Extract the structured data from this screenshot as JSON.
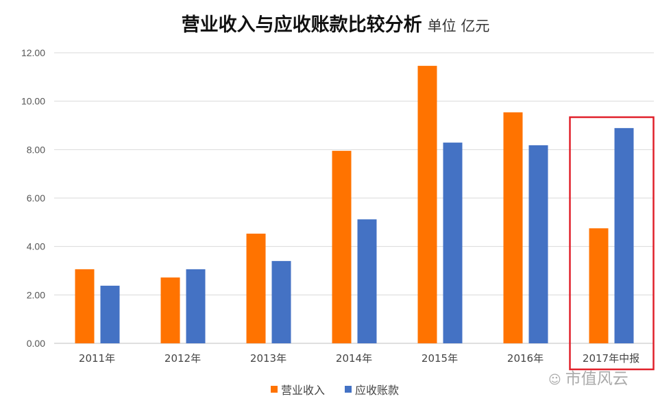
{
  "chart_data": {
    "type": "bar",
    "title": "营业收入与应收账款比较分析",
    "subtitle": "单位 亿元",
    "categories": [
      "2011年",
      "2012年",
      "2013年",
      "2014年",
      "2015年",
      "2016年",
      "2017年中报"
    ],
    "series": [
      {
        "name": "营业收入",
        "color": "#FF7300",
        "values": [
          3.06,
          2.72,
          4.53,
          7.95,
          11.46,
          9.54,
          4.75
        ]
      },
      {
        "name": "应收账款",
        "color": "#4472C4",
        "values": [
          2.38,
          3.06,
          3.4,
          5.12,
          8.29,
          8.18,
          8.89
        ]
      }
    ],
    "ylim": [
      0,
      12
    ],
    "yticks": [
      "0.00",
      "2.00",
      "4.00",
      "6.00",
      "8.00",
      "10.00",
      "12.00"
    ],
    "grid": true,
    "legend_position": "bottom",
    "highlight": {
      "category": "2017年中报",
      "color": "#E0202A"
    }
  },
  "watermark": "市值风云"
}
